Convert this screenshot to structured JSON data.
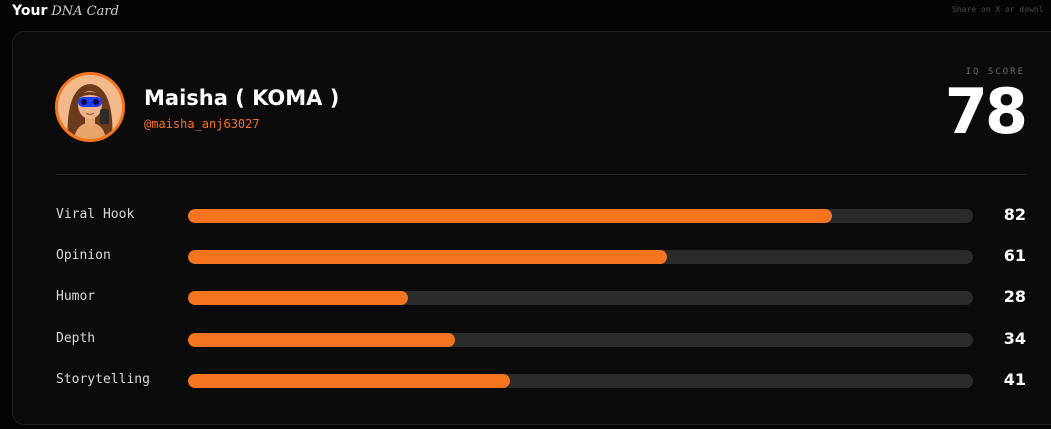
{
  "header": {
    "title_bold": "Your",
    "title_italic": "DNA Card",
    "share_hint": "Share on X or downl"
  },
  "profile": {
    "name": "Maisha ( KOMA )",
    "handle": "@maisha_anj63027"
  },
  "iq": {
    "label": "IQ SCORE",
    "value": "78"
  },
  "colors": {
    "accent": "#f47420",
    "track": "#2b2b2b",
    "card_bg": "#0b0b0b"
  },
  "traits": [
    {
      "label": "Viral Hook",
      "value": 82
    },
    {
      "label": "Opinion",
      "value": 61
    },
    {
      "label": "Humor",
      "value": 28
    },
    {
      "label": "Depth",
      "value": 34
    },
    {
      "label": "Storytelling",
      "value": 41
    }
  ]
}
